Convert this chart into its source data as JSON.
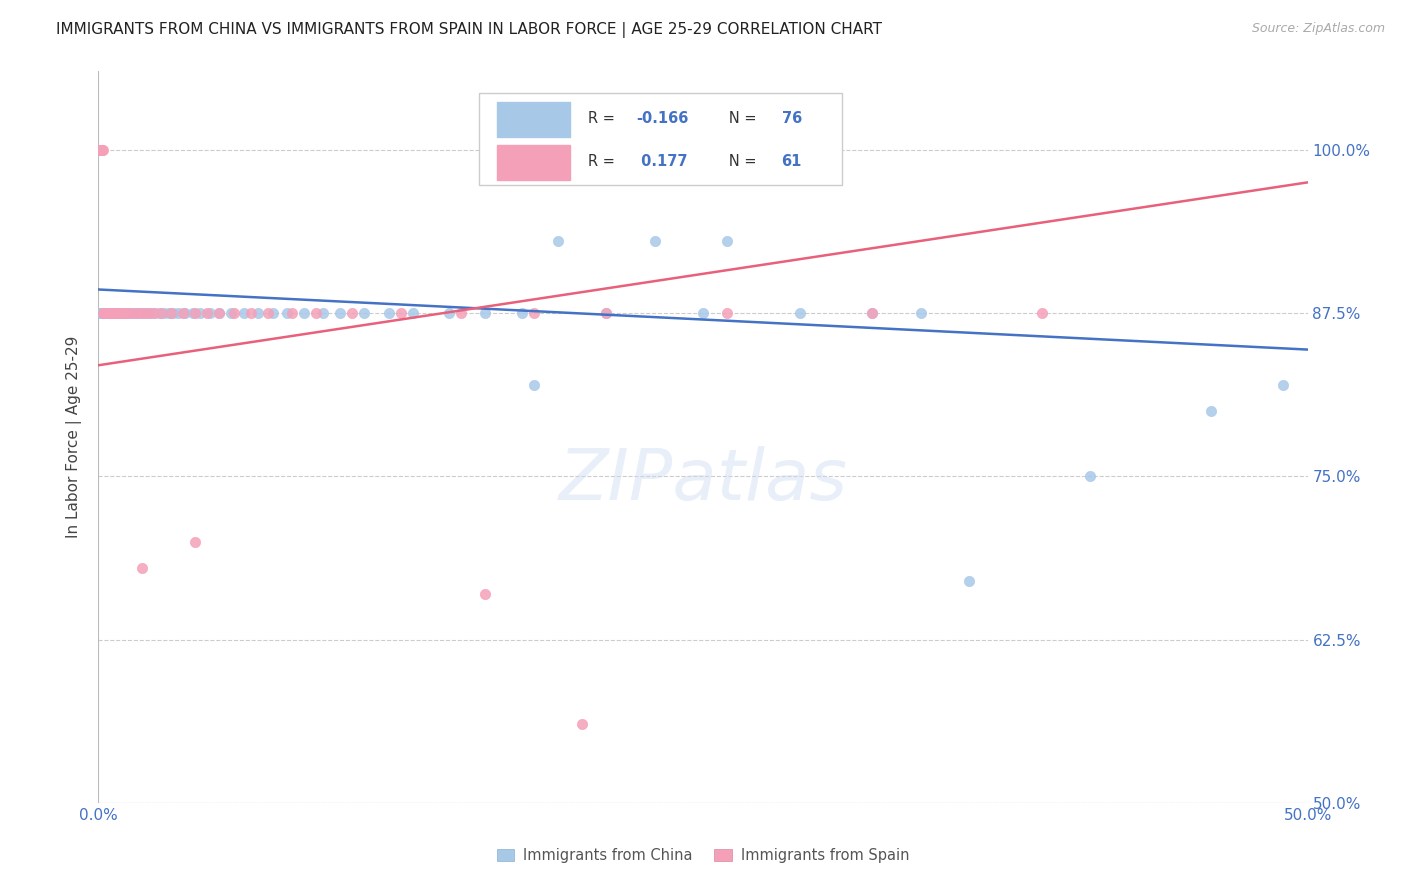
{
  "title": "IMMIGRANTS FROM CHINA VS IMMIGRANTS FROM SPAIN IN LABOR FORCE | AGE 25-29 CORRELATION CHART",
  "source": "Source: ZipAtlas.com",
  "ylabel": "In Labor Force | Age 25-29",
  "ytick_vals": [
    1.0,
    0.875,
    0.75,
    0.625,
    0.5
  ],
  "ytick_labels": [
    "100.0%",
    "87.5%",
    "75.0%",
    "62.5%",
    "50.0%"
  ],
  "xlim": [
    0.0,
    0.5
  ],
  "ylim": [
    0.5,
    1.06
  ],
  "china_color": "#a8c8e8",
  "spain_color": "#f4a0b8",
  "china_line_color": "#4472c4",
  "spain_line_color": "#e8607a",
  "china_R": -0.166,
  "china_N": 76,
  "spain_R": 0.177,
  "spain_N": 61,
  "china_line_x0": 0.0,
  "china_line_y0": 0.893,
  "china_line_x1": 0.5,
  "china_line_y1": 0.847,
  "spain_line_x0": 0.0,
  "spain_line_y0": 0.835,
  "spain_line_x1": 0.5,
  "spain_line_y1": 0.975,
  "china_x": [
    0.0008,
    0.001,
    0.0012,
    0.0015,
    0.0018,
    0.002,
    0.002,
    0.0022,
    0.0025,
    0.0028,
    0.003,
    0.003,
    0.0032,
    0.0035,
    0.0038,
    0.004,
    0.0042,
    0.0045,
    0.0048,
    0.005,
    0.0055,
    0.006,
    0.0065,
    0.007,
    0.0075,
    0.008,
    0.009,
    0.01,
    0.011,
    0.012,
    0.013,
    0.014,
    0.0155,
    0.0165,
    0.0175,
    0.019,
    0.02,
    0.0215,
    0.023,
    0.025,
    0.027,
    0.029,
    0.031,
    0.033,
    0.036,
    0.039,
    0.042,
    0.046,
    0.05,
    0.055,
    0.06,
    0.066,
    0.072,
    0.078,
    0.085,
    0.093,
    0.1,
    0.11,
    0.12,
    0.13,
    0.145,
    0.16,
    0.175,
    0.19,
    0.21,
    0.23,
    0.26,
    0.29,
    0.32,
    0.36,
    0.41,
    0.46,
    0.34,
    0.25,
    0.18,
    0.49
  ],
  "china_y": [
    0.875,
    0.875,
    0.875,
    0.875,
    0.875,
    0.875,
    0.875,
    0.875,
    0.875,
    0.875,
    0.875,
    0.875,
    0.875,
    0.875,
    0.875,
    0.875,
    0.875,
    0.875,
    0.875,
    0.875,
    0.875,
    0.875,
    0.875,
    0.875,
    0.875,
    0.875,
    0.875,
    0.875,
    0.875,
    0.875,
    0.875,
    0.875,
    0.875,
    0.875,
    0.875,
    0.875,
    0.875,
    0.875,
    0.875,
    0.875,
    0.875,
    0.875,
    0.875,
    0.875,
    0.875,
    0.875,
    0.875,
    0.875,
    0.875,
    0.875,
    0.875,
    0.875,
    0.875,
    0.875,
    0.875,
    0.875,
    0.875,
    0.875,
    0.875,
    0.875,
    0.875,
    0.875,
    0.875,
    0.93,
    0.875,
    0.93,
    0.93,
    0.875,
    0.875,
    0.67,
    0.75,
    0.8,
    0.875,
    0.875,
    0.82,
    0.82
  ],
  "spain_x": [
    0.0005,
    0.0005,
    0.0005,
    0.0005,
    0.0005,
    0.0005,
    0.0005,
    0.0005,
    0.0005,
    0.0005,
    0.0008,
    0.001,
    0.0012,
    0.0015,
    0.0018,
    0.002,
    0.0022,
    0.0025,
    0.0028,
    0.003,
    0.0035,
    0.004,
    0.0045,
    0.005,
    0.0055,
    0.006,
    0.0065,
    0.007,
    0.008,
    0.009,
    0.01,
    0.0115,
    0.013,
    0.015,
    0.017,
    0.019,
    0.021,
    0.023,
    0.026,
    0.03,
    0.035,
    0.04,
    0.045,
    0.05,
    0.056,
    0.063,
    0.07,
    0.08,
    0.09,
    0.105,
    0.125,
    0.15,
    0.18,
    0.21,
    0.26,
    0.32,
    0.39,
    0.04,
    0.16,
    0.2,
    0.018
  ],
  "spain_y": [
    1.0,
    1.0,
    1.0,
    1.0,
    1.0,
    1.0,
    1.0,
    1.0,
    1.0,
    1.0,
    1.0,
    1.0,
    1.0,
    1.0,
    1.0,
    0.875,
    0.875,
    0.875,
    0.875,
    0.875,
    0.875,
    0.875,
    0.875,
    0.875,
    0.875,
    0.875,
    0.875,
    0.875,
    0.875,
    0.875,
    0.875,
    0.875,
    0.875,
    0.875,
    0.875,
    0.875,
    0.875,
    0.875,
    0.875,
    0.875,
    0.875,
    0.875,
    0.875,
    0.875,
    0.875,
    0.875,
    0.875,
    0.875,
    0.875,
    0.875,
    0.875,
    0.875,
    0.875,
    0.875,
    0.875,
    0.875,
    0.875,
    0.7,
    0.66,
    0.56,
    0.68
  ]
}
